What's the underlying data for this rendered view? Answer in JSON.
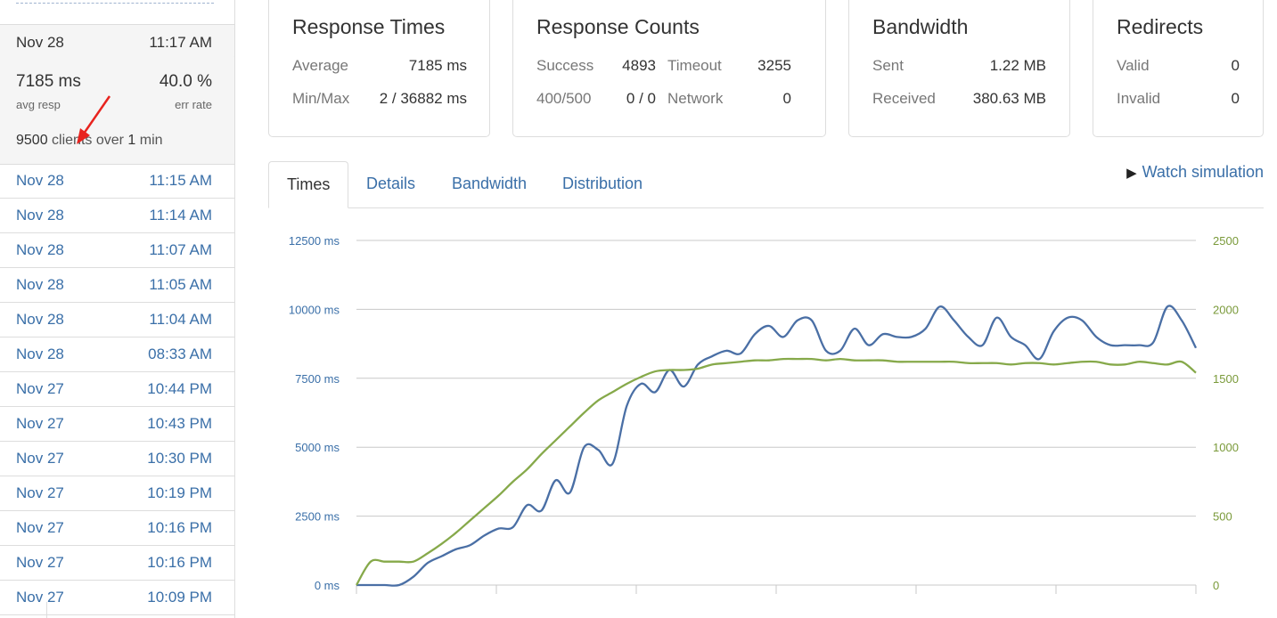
{
  "sidebar": {
    "current": {
      "date": "Nov 28",
      "time": "11:17 AM",
      "avg_resp": "7185 ms",
      "avg_resp_label": "avg resp",
      "err_rate": "40.0 %",
      "err_rate_label": "err rate",
      "clients": "9500",
      "clients_mid": " clients over ",
      "duration": "1",
      "duration_unit": " min"
    },
    "runs": [
      {
        "date": "Nov 28",
        "time": "11:15 AM"
      },
      {
        "date": "Nov 28",
        "time": "11:14 AM"
      },
      {
        "date": "Nov 28",
        "time": "11:07 AM"
      },
      {
        "date": "Nov 28",
        "time": "11:05 AM"
      },
      {
        "date": "Nov 28",
        "time": "11:04 AM"
      },
      {
        "date": "Nov 28",
        "time": "08:33 AM"
      },
      {
        "date": "Nov 27",
        "time": "10:44 PM"
      },
      {
        "date": "Nov 27",
        "time": "10:43 PM"
      },
      {
        "date": "Nov 27",
        "time": "10:30 PM"
      },
      {
        "date": "Nov 27",
        "time": "10:19 PM"
      },
      {
        "date": "Nov 27",
        "time": "10:16 PM"
      },
      {
        "date": "Nov 27",
        "time": "10:16 PM"
      },
      {
        "date": "Nov 27",
        "time": "10:09 PM"
      }
    ]
  },
  "cards": {
    "response_times": {
      "title": "Response Times",
      "average_label": "Average",
      "average": "7185 ms",
      "minmax_label": "Min/Max",
      "minmax": "2 / 36882 ms"
    },
    "response_counts": {
      "title": "Response Counts",
      "success_label": "Success",
      "success": "4893",
      "timeout_label": "Timeout",
      "timeout": "3255",
      "errors_label": "400/500",
      "errors": "0 / 0",
      "network_label": "Network",
      "network": "0"
    },
    "bandwidth": {
      "title": "Bandwidth",
      "sent_label": "Sent",
      "sent": "1.22 MB",
      "received_label": "Received",
      "received": "380.63 MB"
    },
    "redirects": {
      "title": "Redirects",
      "valid_label": "Valid",
      "valid": "0",
      "invalid_label": "Invalid",
      "invalid": "0"
    }
  },
  "tabs": [
    "Times",
    "Details",
    "Bandwidth",
    "Distribution"
  ],
  "active_tab": "Times",
  "watch_simulation": "Watch simulation",
  "colors": {
    "response_time": "#4a6fa5",
    "clients": "#86a94a",
    "link": "#3a6fa8"
  },
  "chart_data": {
    "type": "line",
    "left_axis": {
      "ticks": [
        "0 ms",
        "2500 ms",
        "5000 ms",
        "7500 ms",
        "10000 ms",
        "12500 ms"
      ],
      "ylim": [
        0,
        12500
      ]
    },
    "right_axis": {
      "ticks": [
        "0",
        "500",
        "1000",
        "1500",
        "2000",
        "2500"
      ],
      "ylim": [
        0,
        2500
      ]
    },
    "x_count": 60,
    "grid": true,
    "series": [
      {
        "axis": "left",
        "values": [
          0,
          0,
          0,
          0,
          300,
          800,
          1050,
          1300,
          1450,
          1800,
          2050,
          2100,
          2900,
          2700,
          3800,
          3350,
          5000,
          4900,
          4400,
          6500,
          7300,
          7000,
          7800,
          7200,
          8000,
          8300,
          8500,
          8400,
          9100,
          9400,
          9000,
          9600,
          9600,
          8500,
          8500,
          9300,
          8700,
          9100,
          9000,
          9000,
          9300,
          10100,
          9600,
          9000,
          8700,
          9700,
          9000,
          8700,
          8200,
          9200,
          9700,
          9600,
          9000,
          8700,
          8700,
          8700,
          8800,
          10100,
          9600,
          8600
        ],
        "color": "#4a6fa5"
      },
      {
        "axis": "right",
        "values": [
          0,
          170,
          170,
          170,
          170,
          230,
          300,
          380,
          470,
          560,
          650,
          750,
          840,
          950,
          1050,
          1150,
          1250,
          1340,
          1400,
          1460,
          1510,
          1550,
          1560,
          1560,
          1570,
          1600,
          1610,
          1620,
          1630,
          1630,
          1640,
          1640,
          1640,
          1630,
          1640,
          1630,
          1630,
          1630,
          1620,
          1620,
          1620,
          1620,
          1620,
          1610,
          1610,
          1610,
          1600,
          1610,
          1610,
          1600,
          1610,
          1620,
          1620,
          1600,
          1600,
          1620,
          1610,
          1600,
          1620,
          1540
        ],
        "color": "#86a94a"
      }
    ]
  }
}
